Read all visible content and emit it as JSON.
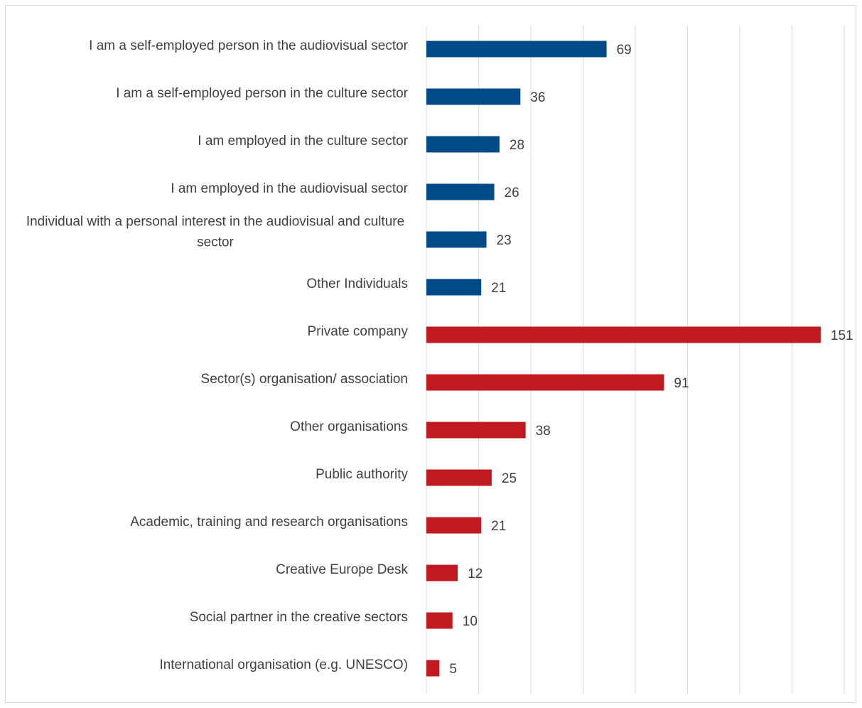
{
  "chart_data": {
    "type": "bar",
    "orientation": "horizontal",
    "title": "",
    "xlabel": "",
    "ylabel": "",
    "xlim": [
      0,
      160
    ],
    "grid": true,
    "legend": "none",
    "colors": {
      "individuals": "#004b87",
      "organisations": "#c0191f"
    },
    "categories": [
      "I am a self-employed person in the audiovisual sector",
      "I am a self-employed person in the culture sector",
      "I am employed in the culture sector",
      "I am employed in the audiovisual sector",
      "Individual with a personal interest in the audiovisual and culture sector",
      "Other Individuals",
      "Private company",
      "Sector(s) organisation/ association",
      "Other organisations",
      "Public authority",
      "Academic, training and research organisations",
      "Creative Europe Desk",
      "Social partner in the creative sectors",
      "International organisation (e.g. UNESCO)"
    ],
    "values": [
      69,
      36,
      28,
      26,
      23,
      21,
      151,
      91,
      38,
      25,
      21,
      12,
      10,
      5
    ],
    "groups": [
      "individuals",
      "individuals",
      "individuals",
      "individuals",
      "individuals",
      "individuals",
      "organisations",
      "organisations",
      "organisations",
      "organisations",
      "organisations",
      "organisations",
      "organisations",
      "organisations"
    ]
  }
}
